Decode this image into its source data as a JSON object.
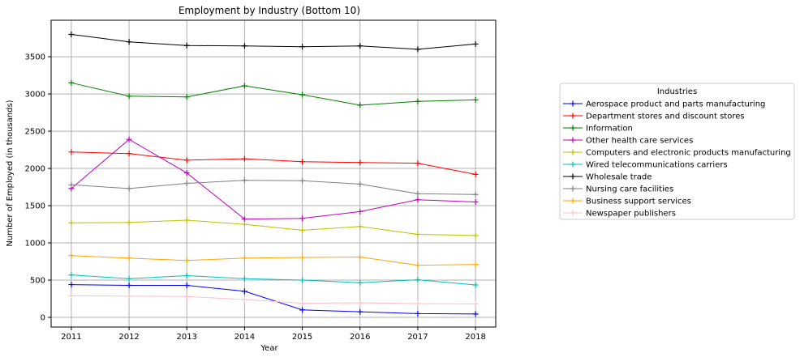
{
  "chart_data": {
    "type": "line",
    "title": "Employment by Industry (Bottom 10)",
    "xlabel": "Year",
    "ylabel": "Number of Employed (in thousands)",
    "x": [
      2011,
      2012,
      2013,
      2014,
      2015,
      2016,
      2017,
      2018
    ],
    "x_tick_labels": [
      "2011",
      "2012",
      "2013",
      "2014",
      "2015",
      "2016",
      "2017",
      "2018"
    ],
    "ylim": [
      -130,
      3990
    ],
    "y_ticks": [
      0,
      500,
      1000,
      1500,
      2000,
      2500,
      3000,
      3500
    ],
    "y_tick_labels": [
      "0",
      "500",
      "1000",
      "1500",
      "2000",
      "2500",
      "3000",
      "3500"
    ],
    "grid": true,
    "marker": "+",
    "legend": {
      "title": "Industries",
      "placement": "outside-right"
    },
    "series": [
      {
        "name": "Aerospace product and parts manufacturing",
        "color": "#0000ff",
        "values": [
          440,
          430,
          430,
          350,
          100,
          75,
          50,
          45
        ]
      },
      {
        "name": "Department stores and discount stores",
        "color": "#ff0000",
        "values": [
          2220,
          2200,
          2110,
          2130,
          2090,
          2080,
          2070,
          1920
        ]
      },
      {
        "name": "Information",
        "color": "#008000",
        "values": [
          3150,
          2970,
          2960,
          3110,
          2990,
          2850,
          2900,
          2920
        ]
      },
      {
        "name": "Other health care services",
        "color": "#bf00bf",
        "values": [
          1730,
          2390,
          1940,
          1320,
          1330,
          1420,
          1580,
          1550
        ]
      },
      {
        "name": "Computers and electronic products manufacturing",
        "color": "#bfbf00",
        "values": [
          1270,
          1275,
          1305,
          1250,
          1170,
          1220,
          1115,
          1100
        ]
      },
      {
        "name": "Wired telecommunications carriers",
        "color": "#00bfbf",
        "values": [
          570,
          520,
          560,
          520,
          500,
          465,
          505,
          435
        ]
      },
      {
        "name": "Wholesale trade",
        "color": "#000000",
        "values": [
          3800,
          3700,
          3650,
          3645,
          3635,
          3645,
          3600,
          3670
        ]
      },
      {
        "name": "Nursing care facilities",
        "color": "#808080",
        "values": [
          1780,
          1730,
          1800,
          1840,
          1835,
          1790,
          1660,
          1650
        ]
      },
      {
        "name": "Business support services",
        "color": "#ffa500",
        "values": [
          830,
          795,
          765,
          795,
          805,
          810,
          700,
          710
        ]
      },
      {
        "name": "Newspaper publishers",
        "color": "#ffc0cb",
        "values": [
          290,
          285,
          280,
          240,
          190,
          195,
          185,
          180
        ]
      }
    ]
  }
}
